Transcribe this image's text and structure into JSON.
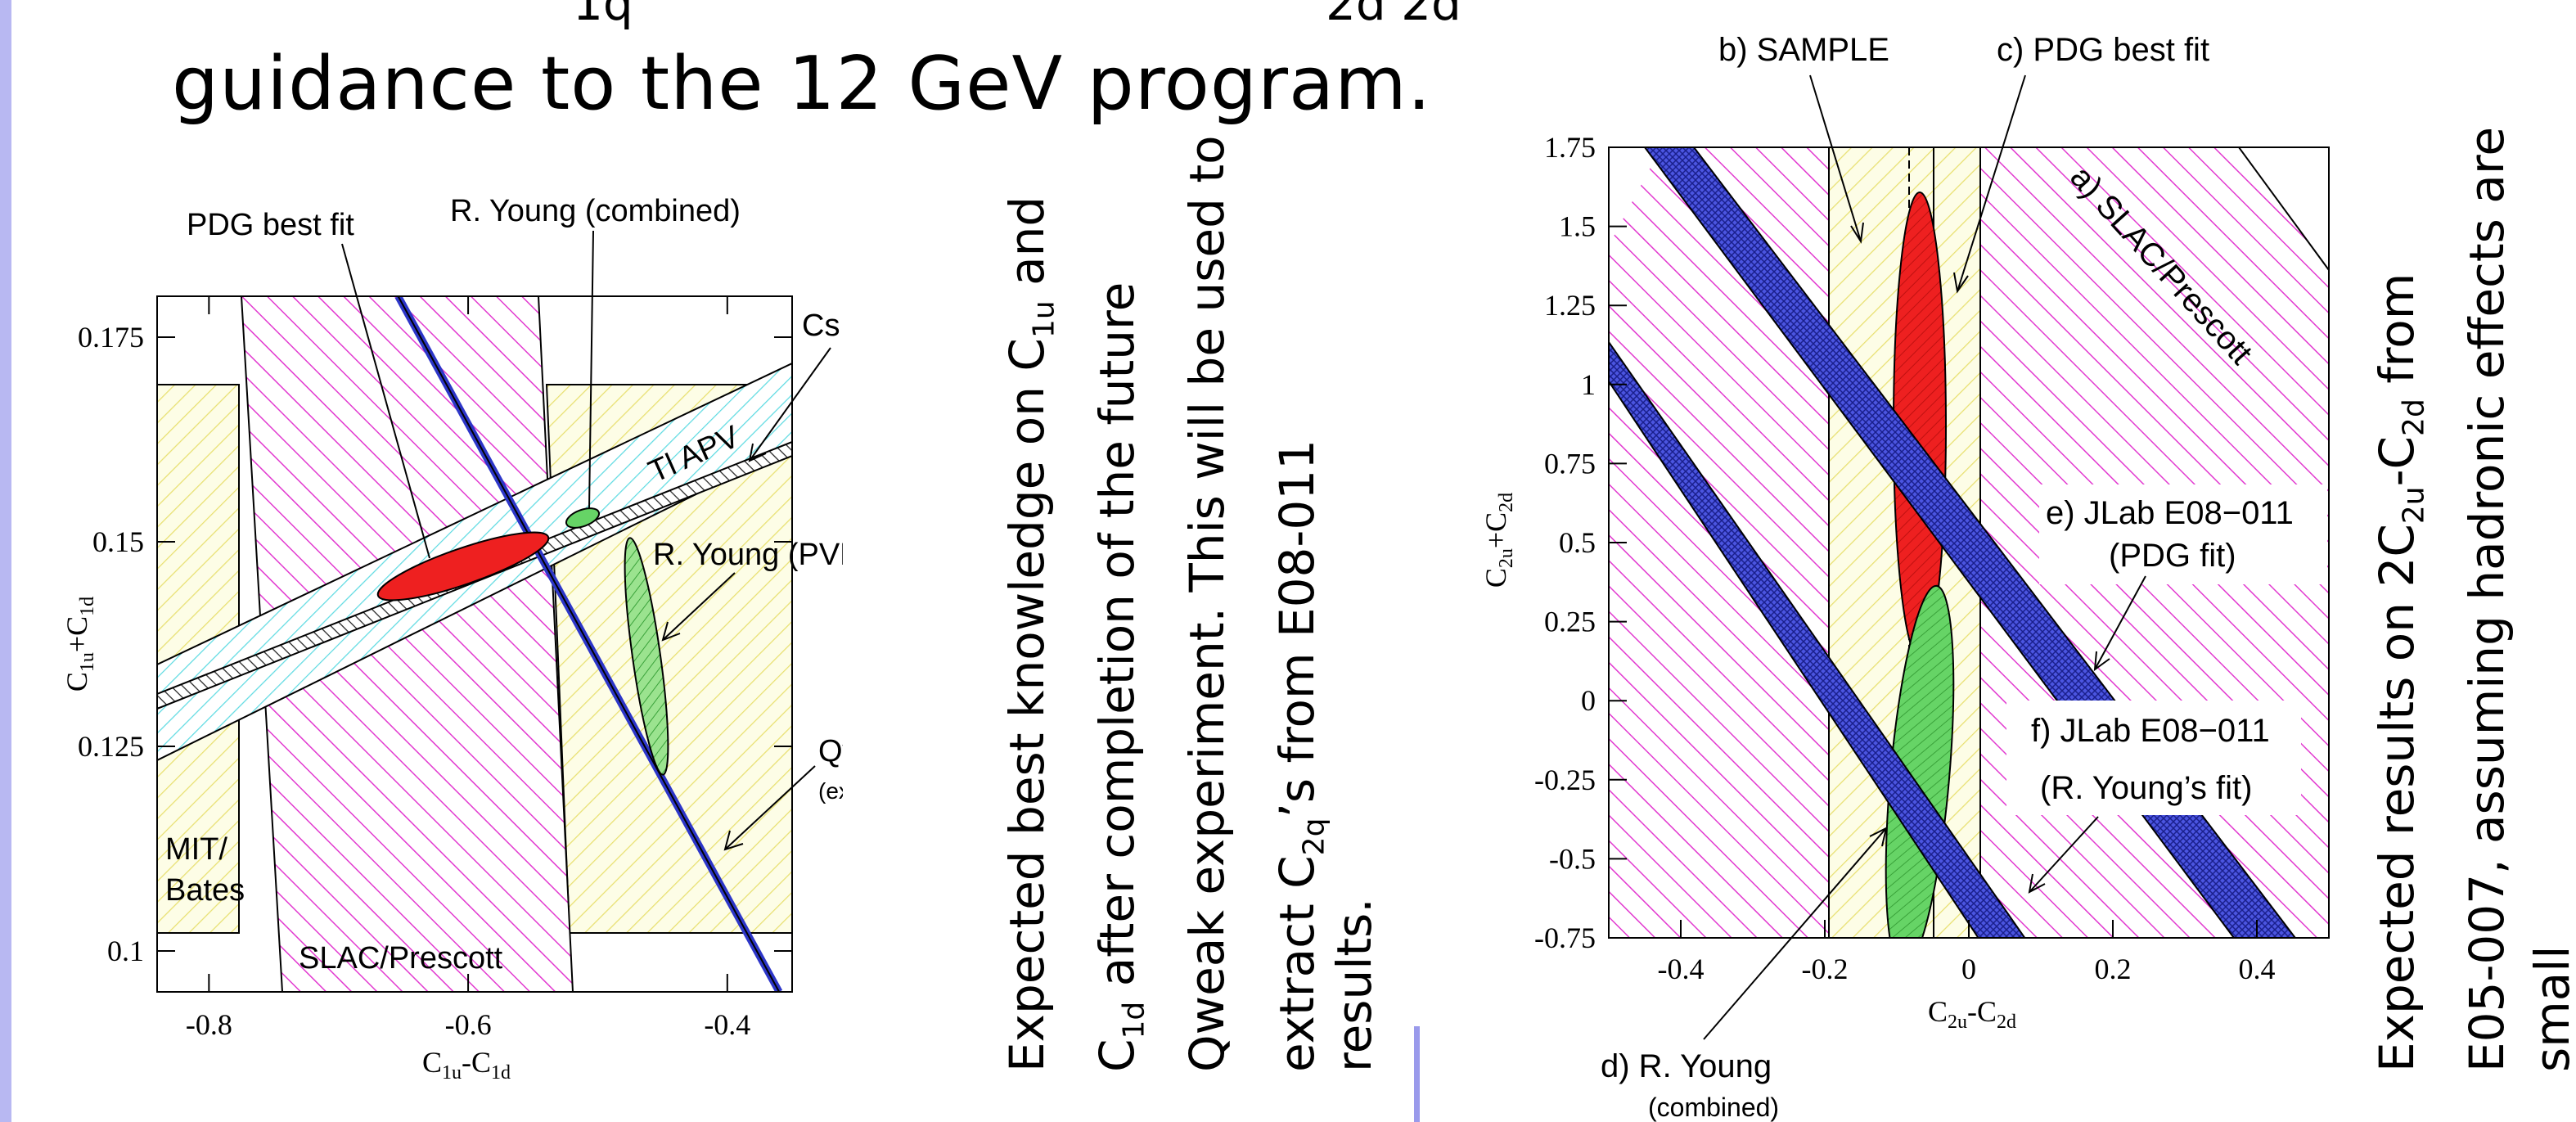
{
  "slide": {
    "top_fragment_left": "1q",
    "top_fragment_right": "2d    2d",
    "heading": "guidance to the 12 GeV program.",
    "left_caption_lines": [
      [
        "Expected best knowledge on C",
        "1u",
        " and"
      ],
      [
        "C",
        "1d",
        " after completion of the future"
      ],
      [
        "Qweak experiment. This will be used to"
      ],
      [
        "extract C",
        "2q",
        "’s from E08-011"
      ],
      [
        "results."
      ]
    ],
    "right_caption_lines": [
      [
        "Expected results on 2C",
        "2u",
        "-C",
        "2d",
        " from"
      ],
      [
        "E05-007, assuming hadronic effects are"
      ],
      [
        "small"
      ]
    ]
  },
  "chart_data": [
    {
      "type": "line",
      "xlabel": "C1u-C1d",
      "ylabel": "C1u+C1d",
      "xlabel_main": "C",
      "xlabel_sub1": "1u",
      "xlabel_mid": "-C",
      "xlabel_sub2": "1d",
      "ylabel_main": "C",
      "ylabel_sub1": "1u",
      "ylabel_mid": "+C",
      "ylabel_sub2": "1d",
      "xlim": [
        -0.84,
        -0.35
      ],
      "ylim": [
        0.095,
        0.18
      ],
      "x_tick_labels": [
        "-0.8",
        "-0.6",
        "-0.4"
      ],
      "x_ticks": [
        -0.8,
        -0.6,
        -0.4
      ],
      "y_tick_labels": [
        "0.1",
        "0.125",
        "0.15",
        "0.175"
      ],
      "y_ticks": [
        0.1,
        0.125,
        0.15,
        0.175
      ],
      "bands": [
        {
          "name": "MIT/Bates",
          "color": "#f2f2a6"
        },
        {
          "name": "SLAC/Prescott",
          "color": "#e23ad0"
        },
        {
          "name": "Tl APV",
          "color": "#7fe6ea"
        },
        {
          "name": "Cs APV",
          "color": "#333333"
        },
        {
          "name": "Qweak",
          "color": "#2d36c8"
        }
      ],
      "qweak_line": {
        "x": [
          -0.654,
          -0.36
        ],
        "y": [
          0.18,
          0.095
        ]
      },
      "annotations": {
        "pdg": "PDG best fit",
        "young_combined": "R. Young (combined)",
        "cs_apv": "Cs APV",
        "tl_apv": "Tl APV",
        "young_pves": "R. Young (PVES)",
        "qweak": "Qweak",
        "qweak_sub": "(expected)",
        "mit": "MIT/",
        "bates": "Bates",
        "slac": "SLAC/Prescott"
      }
    },
    {
      "type": "line",
      "xlabel": "C2u-C2d",
      "ylabel": "C2u+C2d",
      "xlabel_main": "C",
      "xlabel_sub1": "2u",
      "xlabel_mid": "-C",
      "xlabel_sub2": "2d",
      "ylabel_main": "C",
      "ylabel_sub1": "2u",
      "ylabel_mid": "+C",
      "ylabel_sub2": "2d",
      "xlim": [
        -0.5,
        0.5
      ],
      "ylim": [
        -0.75,
        1.75
      ],
      "x_tick_labels": [
        "-0.4",
        "-0.2",
        "0",
        "0.2",
        "0.4"
      ],
      "x_ticks": [
        -0.4,
        -0.2,
        0,
        0.2,
        0.4
      ],
      "y_tick_labels": [
        "-0.75",
        "-0.5",
        "-0.25",
        "0",
        "0.25",
        "0.5",
        "0.75",
        "1",
        "1.25",
        "1.5",
        "1.75"
      ],
      "y_ticks": [
        -0.75,
        -0.5,
        -0.25,
        0,
        0.25,
        0.5,
        0.75,
        1,
        1.25,
        1.5,
        1.75
      ],
      "bands": [
        {
          "name": "a) SLAC/Prescott",
          "color": "#e23ad0"
        },
        {
          "name": "b) SAMPLE",
          "color": "#f2f2a6"
        },
        {
          "name": "e) JLab E08-011 (PDG fit)",
          "color": "#2d36c8"
        },
        {
          "name": "f) JLab E08-011 (R. Young's fit)",
          "color": "#2d36c8"
        }
      ],
      "annotations": {
        "sample": "b) SAMPLE",
        "pdg": "c) PDG best fit",
        "slac": "a) SLAC/Prescott",
        "e_line1": "e) JLab E08−011",
        "e_line2": "(PDG fit)",
        "f_line1": "f) JLab E08−011",
        "f_line2": "(R. Young’s fit)",
        "d_line1": "d) R. Young",
        "d_line2": "(combined)"
      }
    }
  ]
}
